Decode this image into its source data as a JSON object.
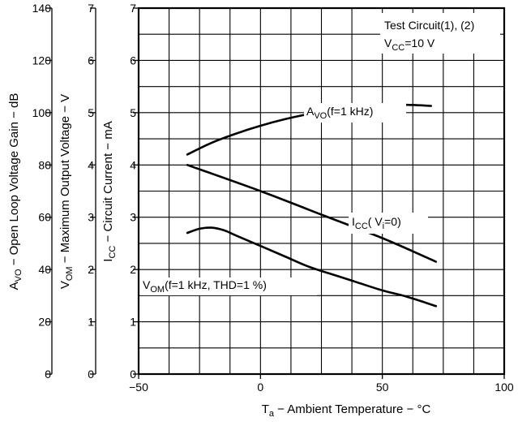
{
  "chart_data": {
    "type": "line",
    "annotation": {
      "line1": "Test Circuit(1), (2)",
      "line2_main": "V",
      "line2_sub": "CC",
      "line2_rest": "=10 V"
    },
    "x_axis": {
      "label_main": "T",
      "label_sub": "a",
      "label_rest": " − Ambient Temperature − °C",
      "ticks": [
        -50,
        0,
        50,
        100
      ],
      "tick_labels": [
        "−50",
        "0",
        "50",
        "100"
      ],
      "range": [
        -50,
        100
      ],
      "gridlines_every": 12.5
    },
    "y_axes": [
      {
        "id": "avo",
        "label_main": "A",
        "label_sub": "VO",
        "label_rest": " − Open Loop Voltage Gain − dB",
        "ticks": [
          0,
          20,
          40,
          60,
          80,
          100,
          120,
          140
        ],
        "tick_labels": [
          "0",
          "20",
          "40",
          "60",
          "80",
          "100",
          "120",
          "140"
        ],
        "range": [
          0,
          140
        ]
      },
      {
        "id": "vom",
        "label_main": "V",
        "label_sub": "OM",
        "label_rest": " − Maximum Output Voltage − V",
        "ticks": [
          0,
          1,
          2,
          3,
          4,
          5,
          6,
          7
        ],
        "tick_labels": [
          "0",
          "1",
          "2",
          "3",
          "4",
          "5",
          "6",
          "7"
        ],
        "range": [
          0,
          7
        ]
      },
      {
        "id": "icc",
        "label_main": "I",
        "label_sub": "CC",
        "label_rest": " − Circuit Current − mA",
        "ticks": [
          0,
          1,
          2,
          3,
          4,
          5,
          6,
          7
        ],
        "tick_labels": [
          "0",
          "1",
          "2",
          "3",
          "4",
          "5",
          "6",
          "7"
        ],
        "range": [
          0,
          7
        ]
      }
    ],
    "grid": true,
    "series": [
      {
        "name_main": "A",
        "name_sub": "VO",
        "name_rest": "(f=1 kHz)",
        "axis": "avo",
        "x": [
          -30,
          -20,
          -10,
          0,
          10,
          20,
          30,
          40,
          50,
          60,
          70
        ],
        "y": [
          84.0,
          88.5,
          92.0,
          95.0,
          97.5,
          99.5,
          101.0,
          102.0,
          102.8,
          103.0,
          102.6
        ]
      },
      {
        "name_main": "I",
        "name_sub": "CC",
        "name_rest": "( V",
        "name_sub2": "i",
        "name_rest2": "=0)",
        "axis": "icc",
        "x": [
          -30,
          0,
          25,
          50,
          72
        ],
        "y": [
          4.0,
          3.5,
          3.05,
          2.6,
          2.15
        ]
      },
      {
        "name_main": "V",
        "name_sub": "OM",
        "name_rest": "(f=1 kHz, THD=1 %)",
        "axis": "vom",
        "x": [
          -30,
          -25,
          -20,
          -15,
          -10,
          0,
          10,
          20,
          30,
          40,
          50,
          60,
          72
        ],
        "y": [
          2.7,
          2.78,
          2.8,
          2.75,
          2.65,
          2.45,
          2.25,
          2.05,
          1.9,
          1.75,
          1.6,
          1.48,
          1.3
        ]
      }
    ]
  }
}
